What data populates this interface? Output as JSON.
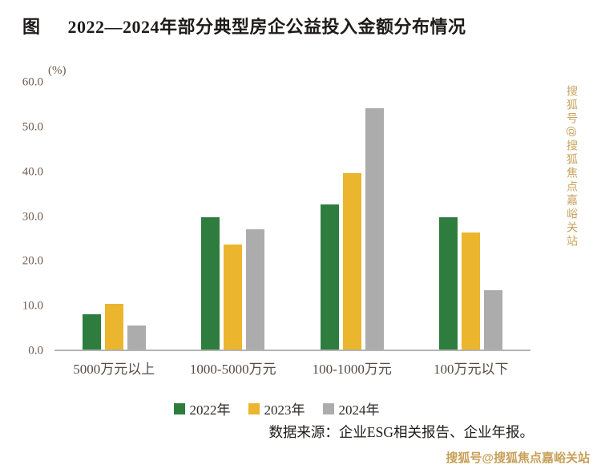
{
  "page": {
    "figure_prefix": "图",
    "title": "2022—2024年部分典型房企公益投入金额分布情况",
    "source": "数据来源：企业ESG相关报告、企业年报。",
    "watermark_vertical": "搜狐号@搜狐焦点嘉峪关站",
    "watermark_bottom": "搜狐号@搜狐焦点嘉峪关站"
  },
  "chart_data": {
    "type": "bar",
    "title": "2022—2024年部分典型房企公益投入金额分布情况",
    "unit_label": "(%)",
    "categories": [
      "5000万元以上",
      "1000-5000万元",
      "100-1000万元",
      "100万元以下"
    ],
    "series": [
      {
        "name": "2022年",
        "color": "#2E7D3E",
        "values": [
          7.8,
          29.5,
          32.4,
          29.5
        ]
      },
      {
        "name": "2023年",
        "color": "#EBB52E",
        "values": [
          10.2,
          23.5,
          39.4,
          26.2
        ]
      },
      {
        "name": "2024年",
        "color": "#ACACAC",
        "values": [
          5.3,
          26.8,
          53.9,
          13.3
        ]
      }
    ],
    "ylim": [
      0,
      60
    ],
    "ytick_step": 10,
    "ytick_labels": [
      "0.0",
      "10.0",
      "20.0",
      "30.0",
      "40.0",
      "50.0",
      "60.0"
    ],
    "legend_position": "bottom",
    "grid": false,
    "source": "数据来源：企业ESG相关报告、企业年报。"
  }
}
